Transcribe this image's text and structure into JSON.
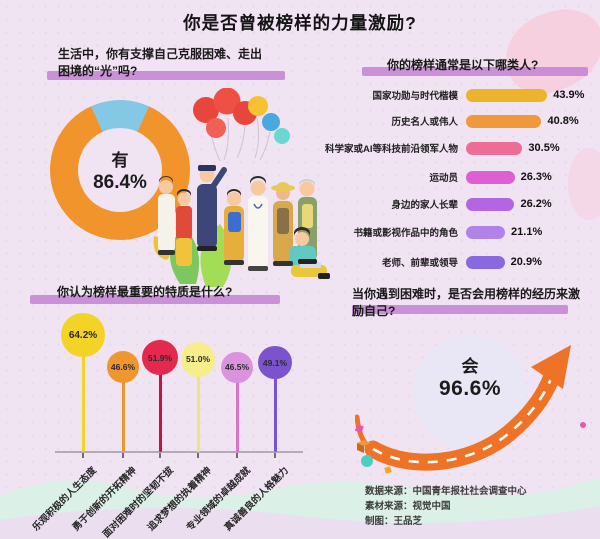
{
  "title": "你是否曾被榜样的力量激励?",
  "q1": {
    "question_line1": "生活中，你有支撑自己克服困难、走出",
    "question_line2": "困境的“光”吗?",
    "answer_label": "有",
    "answer_value": "86.4%",
    "donut_colors": {
      "yes": "#f1942c",
      "other": "#85c8e6"
    }
  },
  "q2": {
    "question": "你的榜样通常是以下哪类人?",
    "bars": [
      {
        "label": "国家功勋与时代楷模",
        "value": "43.9%",
        "pct": 43.9,
        "color": "#edb32b"
      },
      {
        "label": "历史名人或伟人",
        "value": "40.8%",
        "pct": 40.8,
        "color": "#f0993c"
      },
      {
        "label": "科学家或AI等科技前沿领军人物",
        "value": "30.5%",
        "pct": 30.5,
        "color": "#ee6d96"
      },
      {
        "label": "运动员",
        "value": "26.3%",
        "pct": 26.3,
        "color": "#de5fd3"
      },
      {
        "label": "身边的家人长辈",
        "value": "26.2%",
        "pct": 26.2,
        "color": "#b266e3"
      },
      {
        "label": "书籍或影视作品中的角色",
        "value": "21.1%",
        "pct": 21.1,
        "color": "#b183ea"
      },
      {
        "label": "老师、前辈或领导",
        "value": "20.9%",
        "pct": 20.9,
        "color": "#8a68e0"
      }
    ]
  },
  "q3": {
    "question": "你认为榜样最重要的特质是什么?",
    "items": [
      {
        "label": "乐观积极的人生态度",
        "value": "64.2%",
        "pct": 64.2,
        "color": "#f4d327",
        "stem": "#f4d327"
      },
      {
        "label": "勇于创新的开拓精神",
        "value": "46.6%",
        "pct": 46.6,
        "color": "#f0962e",
        "stem": "#f0962e"
      },
      {
        "label": "面对困难时的坚韧不拔",
        "value": "51.9%",
        "pct": 51.9,
        "color": "#e3294e",
        "stem": "#b81a42"
      },
      {
        "label": "追求梦想的执着精神",
        "value": "51.0%",
        "pct": 51.0,
        "color": "#f5ee8b",
        "stem": "#efe47a"
      },
      {
        "label": "专业领域的卓越成就",
        "value": "46.5%",
        "pct": 46.5,
        "color": "#dc93de",
        "stem": "#d973c9"
      },
      {
        "label": "真诚善良的人格魅力",
        "value": "49.1%",
        "pct": 49.1,
        "color": "#7b53cf",
        "stem": "#7b53cf"
      }
    ]
  },
  "q4": {
    "question_line1": "当你遇到困难时，是否会用榜样的经历来激",
    "question_line2": "励自己?",
    "answer_label": "会",
    "answer_value": "96.6%",
    "arrow_color": "#ef7326"
  },
  "credits": {
    "line1": "数据来源：中国青年报社社会调查中心",
    "line2": "素材来源：视觉中国",
    "line3": "制图：王品芝"
  },
  "chart_data": [
    {
      "type": "pie",
      "subtype": "donut",
      "title": "生活中，你有支撑自己克服困难、走出困境的“光”吗?",
      "labels": [
        "有",
        "其他"
      ],
      "values": [
        86.4,
        13.6
      ],
      "colors": [
        "#f1942c",
        "#85c8e6"
      ],
      "center_label": "有 86.4%"
    },
    {
      "type": "bar",
      "orientation": "horizontal",
      "title": "你的榜样通常是以下哪类人?",
      "categories": [
        "国家功勋与时代楷模",
        "历史名人或伟人",
        "科学家或AI等科技前沿领军人物",
        "运动员",
        "身边的家人长辈",
        "书籍或影视作品中的角色",
        "老师、前辈或领导"
      ],
      "values": [
        43.9,
        40.8,
        30.5,
        26.3,
        26.2,
        21.1,
        20.9
      ],
      "unit": "%",
      "xlim": [
        0,
        50
      ],
      "grid": false,
      "data_labels": true
    },
    {
      "type": "bar",
      "subtype": "lollipop",
      "title": "你认为榜样最重要的特质是什么?",
      "categories": [
        "乐观积极的人生态度",
        "勇于创新的开拓精神",
        "面对困难时的坚韧不拔",
        "追求梦想的执着精神",
        "专业领域的卓越成就",
        "真诚善良的人格魅力"
      ],
      "values": [
        64.2,
        46.6,
        51.9,
        51.0,
        46.5,
        49.1
      ],
      "unit": "%",
      "ylim": [
        0,
        70
      ],
      "grid": false,
      "data_labels": true
    },
    {
      "type": "pie",
      "title": "当你遇到困难时，是否会用榜样的经历来激励自己?",
      "labels": [
        "会"
      ],
      "values": [
        96.6
      ],
      "annotation": "会 96.6%"
    }
  ]
}
